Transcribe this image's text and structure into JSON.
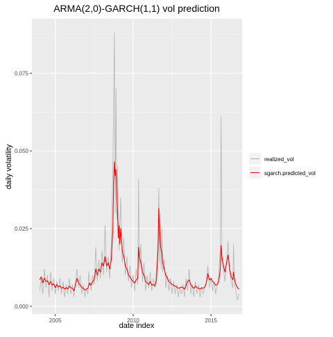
{
  "chart_data": {
    "type": "line",
    "title": "ARMA(2,0)-GARCH(1,1) vol prediction",
    "xlabel": "date index",
    "ylabel": "daily volatility",
    "xlim": [
      2003.5,
      2017.0
    ],
    "ylim": [
      -0.0025,
      0.0925
    ],
    "xticks": [
      2005,
      2010,
      2015
    ],
    "xtick_labels": [
      "2005",
      "2010",
      "2015"
    ],
    "yticks": [
      0.0,
      0.025,
      0.05,
      0.075
    ],
    "ytick_labels": [
      "0.000",
      "0.025",
      "0.050",
      "0.075"
    ],
    "grid": true,
    "legend_position": "right",
    "colors": {
      "panel_bg": "#ebebeb",
      "grid_major": "#ffffff",
      "realized": "#b3b3b3",
      "predicted": "#ff0000",
      "legend_key_bg": "#f2f2f2"
    },
    "series": [
      {
        "name": "realized_vol",
        "color": "#b3b3b3",
        "points": [
          [
            2004.0,
            0.005
          ],
          [
            2004.1,
            0.009
          ],
          [
            2004.2,
            0.004
          ],
          [
            2004.3,
            0.012
          ],
          [
            2004.4,
            0.006
          ],
          [
            2004.5,
            0.01
          ],
          [
            2004.6,
            0.003
          ],
          [
            2004.7,
            0.011
          ],
          [
            2004.8,
            0.005
          ],
          [
            2004.9,
            0.009
          ],
          [
            2005.0,
            0.004
          ],
          [
            2005.1,
            0.008
          ],
          [
            2005.2,
            0.005
          ],
          [
            2005.3,
            0.009
          ],
          [
            2005.4,
            0.004
          ],
          [
            2005.5,
            0.008
          ],
          [
            2005.6,
            0.003
          ],
          [
            2005.7,
            0.007
          ],
          [
            2005.8,
            0.004
          ],
          [
            2005.9,
            0.009
          ],
          [
            2006.0,
            0.004
          ],
          [
            2006.1,
            0.007
          ],
          [
            2006.2,
            0.003
          ],
          [
            2006.3,
            0.008
          ],
          [
            2006.4,
            0.012
          ],
          [
            2006.5,
            0.006
          ],
          [
            2006.6,
            0.01
          ],
          [
            2006.7,
            0.004
          ],
          [
            2006.8,
            0.007
          ],
          [
            2006.9,
            0.003
          ],
          [
            2007.0,
            0.006
          ],
          [
            2007.1,
            0.004
          ],
          [
            2007.15,
            0.011
          ],
          [
            2007.3,
            0.005
          ],
          [
            2007.4,
            0.01
          ],
          [
            2007.5,
            0.007
          ],
          [
            2007.6,
            0.019
          ],
          [
            2007.7,
            0.008
          ],
          [
            2007.8,
            0.015
          ],
          [
            2007.9,
            0.009
          ],
          [
            2008.0,
            0.018
          ],
          [
            2008.1,
            0.01
          ],
          [
            2008.2,
            0.026
          ],
          [
            2008.3,
            0.011
          ],
          [
            2008.4,
            0.016
          ],
          [
            2008.5,
            0.009
          ],
          [
            2008.6,
            0.021
          ],
          [
            2008.7,
            0.045
          ],
          [
            2008.8,
            0.088
          ],
          [
            2008.85,
            0.03
          ],
          [
            2008.9,
            0.07
          ],
          [
            2008.95,
            0.028
          ],
          [
            2009.0,
            0.045
          ],
          [
            2009.1,
            0.018
          ],
          [
            2009.2,
            0.035
          ],
          [
            2009.3,
            0.014
          ],
          [
            2009.4,
            0.022
          ],
          [
            2009.5,
            0.01
          ],
          [
            2009.6,
            0.016
          ],
          [
            2009.7,
            0.008
          ],
          [
            2009.8,
            0.013
          ],
          [
            2009.9,
            0.006
          ],
          [
            2010.0,
            0.01
          ],
          [
            2010.1,
            0.005
          ],
          [
            2010.2,
            0.012
          ],
          [
            2010.3,
            0.007
          ],
          [
            2010.35,
            0.041
          ],
          [
            2010.4,
            0.012
          ],
          [
            2010.5,
            0.02
          ],
          [
            2010.6,
            0.008
          ],
          [
            2010.7,
            0.014
          ],
          [
            2010.8,
            0.005
          ],
          [
            2010.9,
            0.01
          ],
          [
            2011.0,
            0.006
          ],
          [
            2011.1,
            0.011
          ],
          [
            2011.2,
            0.005
          ],
          [
            2011.3,
            0.009
          ],
          [
            2011.4,
            0.006
          ],
          [
            2011.5,
            0.012
          ],
          [
            2011.6,
            0.022
          ],
          [
            2011.65,
            0.038
          ],
          [
            2011.7,
            0.014
          ],
          [
            2011.75,
            0.03
          ],
          [
            2011.8,
            0.012
          ],
          [
            2011.85,
            0.025
          ],
          [
            2011.9,
            0.011
          ],
          [
            2012.0,
            0.015
          ],
          [
            2012.1,
            0.006
          ],
          [
            2012.2,
            0.01
          ],
          [
            2012.3,
            0.005
          ],
          [
            2012.4,
            0.009
          ],
          [
            2012.5,
            0.004
          ],
          [
            2012.6,
            0.008
          ],
          [
            2012.7,
            0.004
          ],
          [
            2012.8,
            0.007
          ],
          [
            2012.9,
            0.003
          ],
          [
            2013.0,
            0.006
          ],
          [
            2013.1,
            0.004
          ],
          [
            2013.2,
            0.007
          ],
          [
            2013.3,
            0.003
          ],
          [
            2013.4,
            0.009
          ],
          [
            2013.5,
            0.005
          ],
          [
            2013.6,
            0.012
          ],
          [
            2013.7,
            0.004
          ],
          [
            2013.8,
            0.007
          ],
          [
            2013.9,
            0.003
          ],
          [
            2014.0,
            0.008
          ],
          [
            2014.1,
            0.004
          ],
          [
            2014.2,
            0.007
          ],
          [
            2014.3,
            0.003
          ],
          [
            2014.4,
            0.006
          ],
          [
            2014.5,
            0.004
          ],
          [
            2014.6,
            0.006
          ],
          [
            2014.7,
            0.008
          ],
          [
            2014.8,
            0.013
          ],
          [
            2014.9,
            0.006
          ],
          [
            2015.0,
            0.009
          ],
          [
            2015.1,
            0.005
          ],
          [
            2015.2,
            0.008
          ],
          [
            2015.3,
            0.004
          ],
          [
            2015.4,
            0.007
          ],
          [
            2015.5,
            0.01
          ],
          [
            2015.6,
            0.02
          ],
          [
            2015.65,
            0.061
          ],
          [
            2015.7,
            0.015
          ],
          [
            2015.8,
            0.012
          ],
          [
            2015.9,
            0.008
          ],
          [
            2016.0,
            0.014
          ],
          [
            2016.1,
            0.021
          ],
          [
            2016.2,
            0.011
          ],
          [
            2016.3,
            0.008
          ],
          [
            2016.4,
            0.006
          ],
          [
            2016.45,
            0.02
          ],
          [
            2016.5,
            0.007
          ],
          [
            2016.6,
            0.005
          ],
          [
            2016.7,
            0.002
          ],
          [
            2016.8,
            0.004
          ]
        ]
      },
      {
        "name": "sgarch.predicted_vol",
        "color": "#ff0000",
        "points": [
          [
            2004.0,
            0.0085
          ],
          [
            2004.1,
            0.0095
          ],
          [
            2004.2,
            0.0075
          ],
          [
            2004.3,
            0.009
          ],
          [
            2004.4,
            0.008
          ],
          [
            2004.5,
            0.0082
          ],
          [
            2004.6,
            0.007
          ],
          [
            2004.7,
            0.008
          ],
          [
            2004.8,
            0.0068
          ],
          [
            2004.9,
            0.0072
          ],
          [
            2005.0,
            0.006
          ],
          [
            2005.1,
            0.007
          ],
          [
            2005.2,
            0.0062
          ],
          [
            2005.3,
            0.0066
          ],
          [
            2005.4,
            0.0058
          ],
          [
            2005.5,
            0.0062
          ],
          [
            2005.6,
            0.0055
          ],
          [
            2005.7,
            0.006
          ],
          [
            2005.8,
            0.0056
          ],
          [
            2005.9,
            0.0065
          ],
          [
            2006.0,
            0.006
          ],
          [
            2006.1,
            0.0058
          ],
          [
            2006.2,
            0.005
          ],
          [
            2006.3,
            0.007
          ],
          [
            2006.4,
            0.009
          ],
          [
            2006.5,
            0.0075
          ],
          [
            2006.6,
            0.0068
          ],
          [
            2006.7,
            0.006
          ],
          [
            2006.8,
            0.0058
          ],
          [
            2006.9,
            0.0052
          ],
          [
            2007.0,
            0.0055
          ],
          [
            2007.1,
            0.0058
          ],
          [
            2007.2,
            0.0075
          ],
          [
            2007.3,
            0.0068
          ],
          [
            2007.4,
            0.008
          ],
          [
            2007.5,
            0.0085
          ],
          [
            2007.6,
            0.012
          ],
          [
            2007.7,
            0.01
          ],
          [
            2007.8,
            0.012
          ],
          [
            2007.9,
            0.011
          ],
          [
            2008.0,
            0.014
          ],
          [
            2008.1,
            0.013
          ],
          [
            2008.2,
            0.016
          ],
          [
            2008.3,
            0.013
          ],
          [
            2008.4,
            0.014
          ],
          [
            2008.5,
            0.012
          ],
          [
            2008.6,
            0.015
          ],
          [
            2008.7,
            0.025
          ],
          [
            2008.75,
            0.04
          ],
          [
            2008.8,
            0.0465
          ],
          [
            2008.85,
            0.042
          ],
          [
            2008.9,
            0.044
          ],
          [
            2008.95,
            0.036
          ],
          [
            2009.0,
            0.03
          ],
          [
            2009.05,
            0.022
          ],
          [
            2009.1,
            0.026
          ],
          [
            2009.15,
            0.02
          ],
          [
            2009.2,
            0.025
          ],
          [
            2009.3,
            0.018
          ],
          [
            2009.4,
            0.016
          ],
          [
            2009.5,
            0.013
          ],
          [
            2009.6,
            0.012
          ],
          [
            2009.7,
            0.01
          ],
          [
            2009.8,
            0.0095
          ],
          [
            2009.9,
            0.0085
          ],
          [
            2010.0,
            0.008
          ],
          [
            2010.1,
            0.0075
          ],
          [
            2010.2,
            0.0085
          ],
          [
            2010.3,
            0.009
          ],
          [
            2010.35,
            0.019
          ],
          [
            2010.4,
            0.016
          ],
          [
            2010.5,
            0.014
          ],
          [
            2010.6,
            0.011
          ],
          [
            2010.7,
            0.01
          ],
          [
            2010.8,
            0.008
          ],
          [
            2010.9,
            0.0075
          ],
          [
            2011.0,
            0.007
          ],
          [
            2011.1,
            0.008
          ],
          [
            2011.2,
            0.0068
          ],
          [
            2011.3,
            0.007
          ],
          [
            2011.4,
            0.0065
          ],
          [
            2011.5,
            0.0085
          ],
          [
            2011.6,
            0.018
          ],
          [
            2011.65,
            0.0315
          ],
          [
            2011.7,
            0.025
          ],
          [
            2011.75,
            0.02
          ],
          [
            2011.8,
            0.018
          ],
          [
            2011.85,
            0.0175
          ],
          [
            2011.9,
            0.014
          ],
          [
            2012.0,
            0.012
          ],
          [
            2012.1,
            0.01
          ],
          [
            2012.2,
            0.009
          ],
          [
            2012.3,
            0.008
          ],
          [
            2012.4,
            0.0075
          ],
          [
            2012.5,
            0.007
          ],
          [
            2012.6,
            0.0068
          ],
          [
            2012.7,
            0.0065
          ],
          [
            2012.8,
            0.0062
          ],
          [
            2012.9,
            0.0058
          ],
          [
            2013.0,
            0.006
          ],
          [
            2013.1,
            0.0062
          ],
          [
            2013.2,
            0.006
          ],
          [
            2013.3,
            0.0055
          ],
          [
            2013.4,
            0.0068
          ],
          [
            2013.5,
            0.008
          ],
          [
            2013.6,
            0.0085
          ],
          [
            2013.7,
            0.007
          ],
          [
            2013.8,
            0.0062
          ],
          [
            2013.9,
            0.0058
          ],
          [
            2014.0,
            0.0065
          ],
          [
            2014.1,
            0.006
          ],
          [
            2014.2,
            0.0058
          ],
          [
            2014.3,
            0.0055
          ],
          [
            2014.4,
            0.006
          ],
          [
            2014.5,
            0.0058
          ],
          [
            2014.6,
            0.0062
          ],
          [
            2014.7,
            0.0075
          ],
          [
            2014.8,
            0.0105
          ],
          [
            2014.9,
            0.0085
          ],
          [
            2015.0,
            0.009
          ],
          [
            2015.1,
            0.008
          ],
          [
            2015.2,
            0.0075
          ],
          [
            2015.3,
            0.0068
          ],
          [
            2015.4,
            0.007
          ],
          [
            2015.5,
            0.008
          ],
          [
            2015.6,
            0.012
          ],
          [
            2015.65,
            0.0195
          ],
          [
            2015.7,
            0.016
          ],
          [
            2015.8,
            0.013
          ],
          [
            2015.9,
            0.011
          ],
          [
            2016.0,
            0.014
          ],
          [
            2016.1,
            0.0165
          ],
          [
            2016.2,
            0.012
          ],
          [
            2016.3,
            0.0095
          ],
          [
            2016.4,
            0.0085
          ],
          [
            2016.45,
            0.011
          ],
          [
            2016.5,
            0.009
          ],
          [
            2016.6,
            0.007
          ],
          [
            2016.7,
            0.006
          ],
          [
            2016.8,
            0.0055
          ]
        ]
      }
    ]
  }
}
